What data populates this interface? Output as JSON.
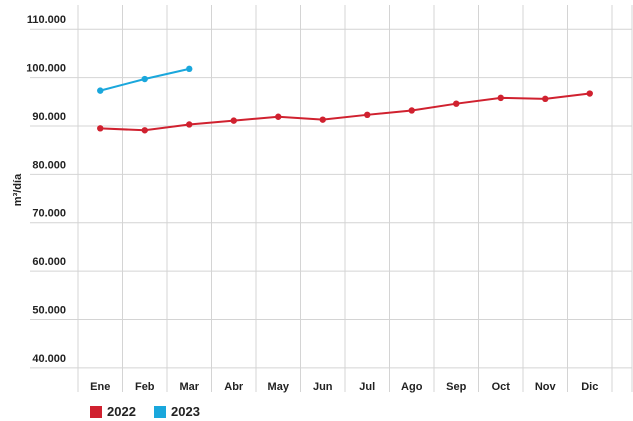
{
  "chart_data": {
    "type": "line",
    "y_label": "m³/día",
    "categories": [
      "Ene",
      "Feb",
      "Mar",
      "Abr",
      "May",
      "Jun",
      "Jul",
      "Ago",
      "Sep",
      "Oct",
      "Nov",
      "Dic"
    ],
    "series": [
      {
        "name": "2022",
        "color": "#d0212f",
        "values": [
          89500,
          89100,
          90300,
          91100,
          91900,
          91300,
          92300,
          93200,
          94600,
          95800,
          95600,
          96700
        ]
      },
      {
        "name": "2023",
        "color": "#1aa7dc",
        "values": [
          97300,
          99700,
          101800,
          null,
          null,
          null,
          null,
          null,
          null,
          null,
          null,
          null
        ]
      }
    ],
    "ylim": [
      35000,
      115000
    ],
    "yticks": [
      {
        "value": 40000,
        "label": "40.000"
      },
      {
        "value": 50000,
        "label": "50.000"
      },
      {
        "value": 60000,
        "label": "60.000"
      },
      {
        "value": 70000,
        "label": "70.000"
      },
      {
        "value": 80000,
        "label": "80.000"
      },
      {
        "value": 90000,
        "label": "90.000"
      },
      {
        "value": 100000,
        "label": "100.000"
      },
      {
        "value": 110000,
        "label": "110.000"
      }
    ],
    "grid": true,
    "legend": "bottom-left"
  }
}
